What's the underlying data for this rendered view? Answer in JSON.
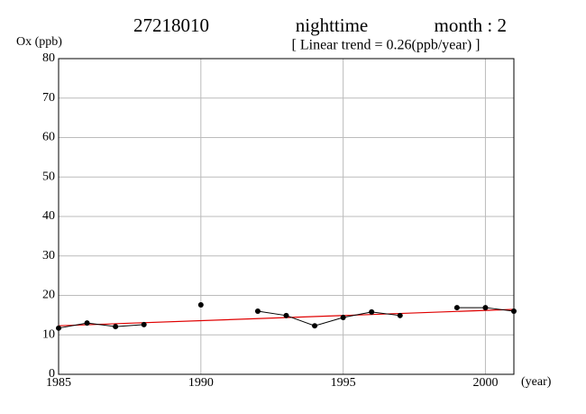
{
  "chart_data": {
    "type": "line",
    "title": "27218010",
    "title_mid": "nighttime",
    "title_right": "month : 2",
    "subtitle": "[ Linear trend = 0.26(ppb/year) ]",
    "y_label": "Ox (ppb)",
    "x_label": "(year)",
    "x": [
      1985,
      1986,
      1987,
      1988,
      1989,
      1990,
      1991,
      1992,
      1993,
      1994,
      1995,
      1996,
      1997,
      1998,
      1999,
      2000,
      2001
    ],
    "series": [
      {
        "color": "#000000",
        "values": [
          11.7,
          13.0,
          12.1,
          12.6,
          null,
          17.6,
          null,
          16.0,
          14.9,
          12.3,
          14.4,
          15.8,
          14.9,
          null,
          16.9,
          16.9,
          16.0
        ]
      }
    ],
    "trend": {
      "x": [
        1985,
        2001
      ],
      "values": [
        12.3,
        16.46
      ],
      "color": "#e00000"
    },
    "xlim": [
      1985,
      2001
    ],
    "xticks": [
      1985,
      1990,
      1995,
      2000
    ],
    "ylim": [
      0,
      80
    ],
    "yticks": [
      0,
      10,
      20,
      30,
      40,
      50,
      60,
      70,
      80
    ],
    "grid": true
  }
}
